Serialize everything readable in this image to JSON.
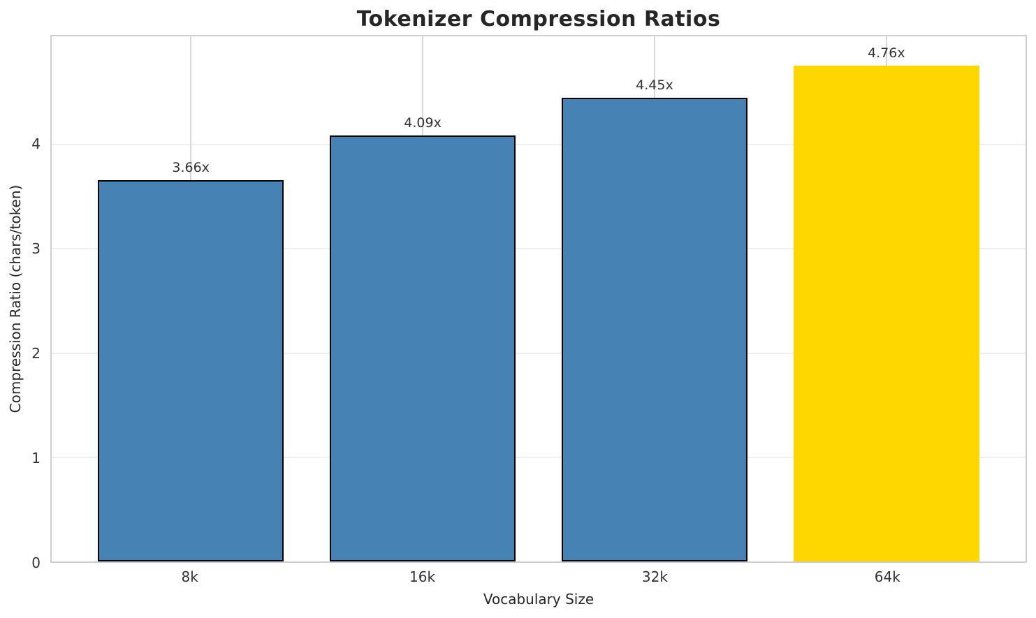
{
  "chart_data": {
    "type": "bar",
    "title": "Tokenizer Compression Ratios",
    "xlabel": "Vocabulary Size",
    "ylabel": "Compression Ratio (chars/token)",
    "categories": [
      "8k",
      "16k",
      "32k",
      "64k"
    ],
    "values": [
      3.66,
      4.09,
      4.45,
      4.76
    ],
    "bar_labels": [
      "3.66x",
      "4.09x",
      "4.45x",
      "4.76x"
    ],
    "bar_colors": [
      "#4682B4",
      "#4682B4",
      "#4682B4",
      "#FFD700"
    ],
    "bar_edge_colors": [
      "#000000",
      "#000000",
      "#000000",
      "none"
    ],
    "base_color": "#4682B4",
    "highlight_color": "#FFD700",
    "ylim": [
      0,
      5.04
    ],
    "yticks": [
      0,
      1,
      2,
      3,
      4
    ],
    "ytick_labels": [
      "0",
      "1",
      "2",
      "3",
      "4"
    ],
    "xlim": [
      -0.6,
      3.6
    ],
    "bar_width": 0.8,
    "grid": "on",
    "legend": "none",
    "spine_color": "#cfcfcf",
    "hgrid_color": "#efefef",
    "vgrid_color": "#d7d7d7"
  }
}
